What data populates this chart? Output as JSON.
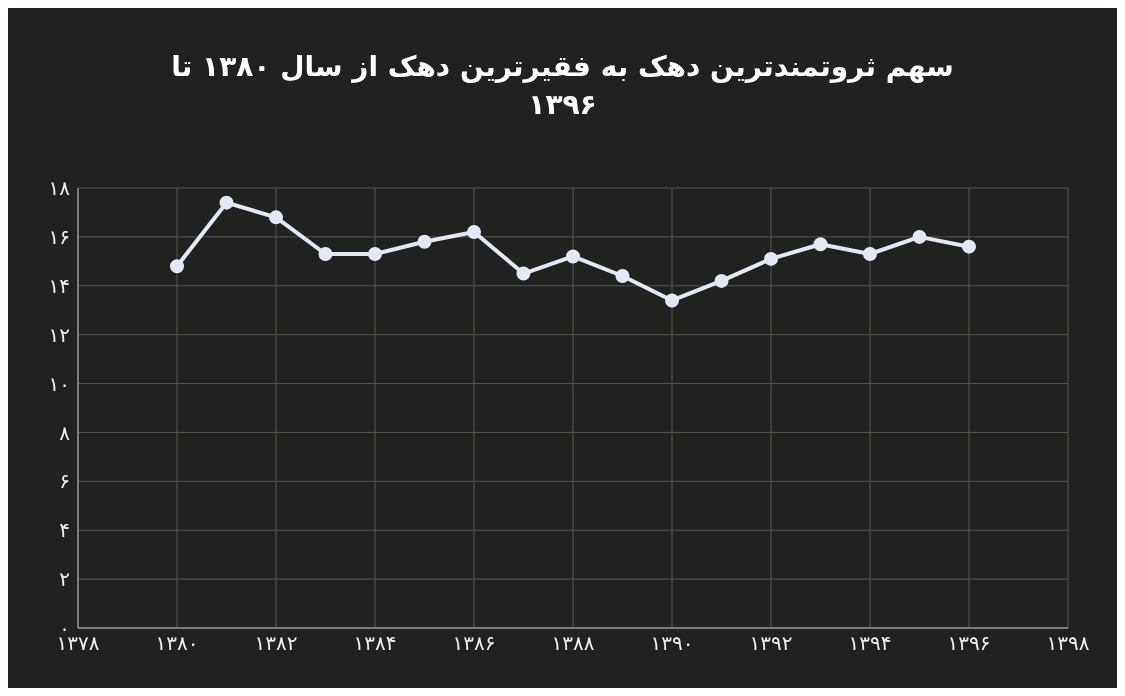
{
  "chart_data": {
    "type": "line",
    "title": "سهم ثروتمندترین دهک به فقیرترین دهک از سال ۱۳۸۰ تا ۱۳۹۶",
    "x": [
      1380,
      1381,
      1382,
      1383,
      1384,
      1385,
      1386,
      1387,
      1388,
      1389,
      1390,
      1391,
      1392,
      1393,
      1394,
      1395,
      1396
    ],
    "series": [
      {
        "color": "#e4e8f4",
        "values": [
          14.8,
          17.4,
          16.8,
          15.3,
          15.3,
          15.8,
          16.2,
          14.5,
          15.2,
          14.4,
          13.4,
          14.2,
          15.1,
          15.7,
          15.3,
          16.0,
          15.6
        ]
      }
    ],
    "xlim": [
      1378,
      1398
    ],
    "xticks": [
      {
        "value": 1378,
        "label": "۱۳۷۸"
      },
      {
        "value": 1380,
        "label": "۱۳۸۰"
      },
      {
        "value": 1382,
        "label": "۱۳۸۲"
      },
      {
        "value": 1384,
        "label": "۱۳۸۴"
      },
      {
        "value": 1386,
        "label": "۱۳۸۶"
      },
      {
        "value": 1388,
        "label": "۱۳۸۸"
      },
      {
        "value": 1390,
        "label": "۱۳۹۰"
      },
      {
        "value": 1392,
        "label": "۱۳۹۲"
      },
      {
        "value": 1394,
        "label": "۱۳۹۴"
      },
      {
        "value": 1396,
        "label": "۱۳۹۶"
      },
      {
        "value": 1398,
        "label": "۱۳۹۸"
      }
    ],
    "ylim": [
      0,
      18
    ],
    "yticks": [
      {
        "value": 0,
        "label": "۰"
      },
      {
        "value": 2,
        "label": "۲"
      },
      {
        "value": 4,
        "label": "۴"
      },
      {
        "value": 6,
        "label": "۶"
      },
      {
        "value": 8,
        "label": "۸"
      },
      {
        "value": 10,
        "label": "۱۰"
      },
      {
        "value": 12,
        "label": "۱۲"
      },
      {
        "value": 14,
        "label": "۱۴"
      },
      {
        "value": 16,
        "label": "۱۶"
      },
      {
        "value": 18,
        "label": "۱۸"
      }
    ],
    "grid": true,
    "marker": "circle",
    "line_style": "solid"
  }
}
